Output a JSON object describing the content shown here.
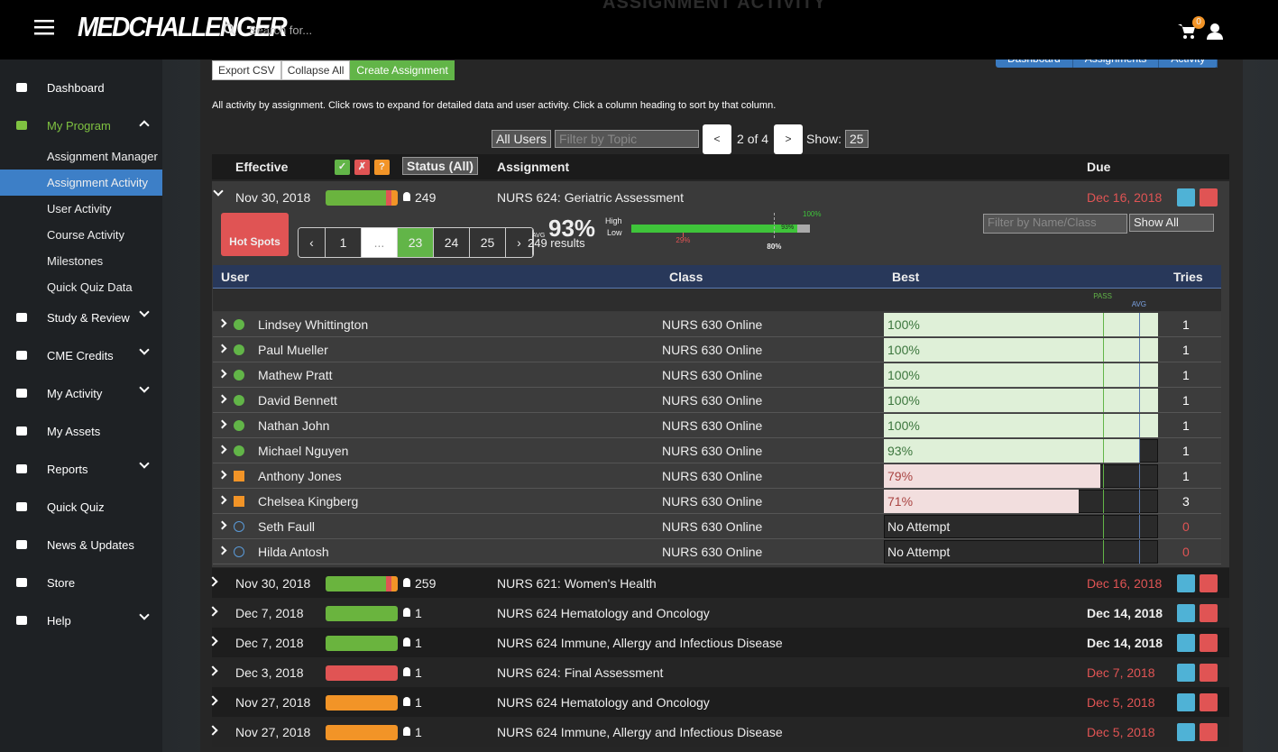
{
  "header": {
    "logo": "MEDCHALLENGER",
    "search_placeholder": "Search for...",
    "cart_count": "0",
    "page_title": "ASSIGNMENT ACTIVITY"
  },
  "sidebar": {
    "items": [
      {
        "label": "Dashboard"
      },
      {
        "label": "My Program",
        "open": true,
        "children": [
          "Assignment Manager",
          "Assignment Activity",
          "User Activity",
          "Course Activity",
          "Milestones",
          "Quick Quiz Data"
        ],
        "active_child": 1
      },
      {
        "label": "Study & Review",
        "caret": true
      },
      {
        "label": "CME Credits",
        "caret": true
      },
      {
        "label": "My Activity",
        "caret": true
      },
      {
        "label": "My Assets"
      },
      {
        "label": "Reports",
        "caret": true
      },
      {
        "label": "Quick Quiz"
      },
      {
        "label": "News & Updates"
      },
      {
        "label": "Store"
      },
      {
        "label": "Help",
        "caret": true
      }
    ]
  },
  "toolbar": [
    "Export CSV",
    "Collapse All",
    "Create Assignment"
  ],
  "nav": [
    "Dashboard",
    "Assignments",
    "Activity"
  ],
  "description": "All activity by assignment. Click rows to expand for detailed data and user activity. Click a column heading to sort by that column.",
  "filters": {
    "users": "All Users",
    "topic_placeholder": "Filter by Topic",
    "prev": "<",
    "page": "2 of 4",
    "next": ">",
    "show_label": "Show:",
    "show_value": "25"
  },
  "columns": {
    "effective": "Effective",
    "status_icons": [
      "✓",
      "✗",
      "?"
    ],
    "status": "Status (All)",
    "assignment": "Assignment",
    "due": "Due"
  },
  "expanded": {
    "effective": "Nov 30, 2018",
    "count": "249",
    "name": "NURS 624: Geriatric Assessment",
    "due": "Dec 16, 2018",
    "due_late": true,
    "hot_spots": "Hot Spots",
    "pages": [
      "‹",
      "1",
      "...",
      "23",
      "24",
      "25",
      "›"
    ],
    "active_page": 3,
    "avg_label": "AVG",
    "avg": {
      "value": 93,
      "label": "93%"
    },
    "results": "249 results",
    "high": "High",
    "low": "Low",
    "max": {
      "value": 100,
      "label": "100%"
    },
    "min": {
      "value": 29,
      "label": "29%"
    },
    "pass": {
      "value": 80,
      "label": "80%"
    },
    "name_filter_placeholder": "Filter by Name/Class",
    "show": "Show All",
    "user_columns": [
      "User",
      "Class",
      "Best",
      "Tries"
    ],
    "pass_label": "PASS",
    "users": [
      {
        "name": "Lindsey Whittington",
        "class": "NURS 630 Online",
        "status": "pass",
        "best": {
          "value": 100,
          "label": "100%"
        },
        "tries": 1
      },
      {
        "name": "Paul Mueller",
        "class": "NURS 630 Online",
        "status": "pass",
        "best": {
          "value": 100,
          "label": "100%"
        },
        "tries": 1
      },
      {
        "name": "Mathew Pratt",
        "class": "NURS 630 Online",
        "status": "pass",
        "best": {
          "value": 100,
          "label": "100%"
        },
        "tries": 1
      },
      {
        "name": "David Bennett",
        "class": "NURS 630 Online",
        "status": "pass",
        "best": {
          "value": 100,
          "label": "100%"
        },
        "tries": 1
      },
      {
        "name": "Nathan John",
        "class": "NURS 630 Online",
        "status": "pass",
        "best": {
          "value": 100,
          "label": "100%"
        },
        "tries": 1
      },
      {
        "name": "Michael Nguyen",
        "class": "NURS 630 Online",
        "status": "pass",
        "best": {
          "value": 93,
          "label": "93%"
        },
        "tries": 1
      },
      {
        "name": "Anthony Jones",
        "class": "NURS 630 Online",
        "status": "warn",
        "best": {
          "value": 79,
          "label": "79%"
        },
        "tries": 1
      },
      {
        "name": "Chelsea Kingberg",
        "class": "NURS 630 Online",
        "status": "warn",
        "best": {
          "value": 71,
          "label": "71%"
        },
        "tries": 3
      },
      {
        "name": "Seth Faull",
        "class": "NURS 630 Online",
        "status": "pending",
        "best": "No Attempt",
        "tries": 0
      },
      {
        "name": "Hilda Antosh",
        "class": "NURS 630 Online",
        "status": "pending",
        "best": "No Attempt",
        "tries": 0
      }
    ]
  },
  "assignments": [
    {
      "effective": "Nov 30, 2018",
      "color": "#6ab43e",
      "mixed": true,
      "count": "259",
      "name": "NURS 621: Women's Health",
      "due": "Dec 16, 2018",
      "due_late": true
    },
    {
      "effective": "Dec 7, 2018",
      "color": "#6ab43e",
      "count": "1",
      "name": "NURS 624 Hematology and Oncology",
      "due": "Dec 14, 2018",
      "due_late": false
    },
    {
      "effective": "Dec 7, 2018",
      "color": "#6ab43e",
      "count": "1",
      "name": "NURS 624 Immune, Allergy and Infectious Disease",
      "due": "Dec 14, 2018",
      "due_late": false
    },
    {
      "effective": "Dec 3, 2018",
      "color": "#e05454",
      "count": "1",
      "name": "NURS 624: Final Assessment",
      "due": "Dec 7, 2018",
      "due_late": true
    },
    {
      "effective": "Nov 27, 2018",
      "color": "#f29427",
      "count": "1",
      "name": "NURS 624 Hematology and Oncology",
      "due": "Dec 5, 2018",
      "due_late": true
    },
    {
      "effective": "Nov 27, 2018",
      "color": "#f29427",
      "count": "1",
      "name": "NURS 624 Immune, Allergy and Infectious Disease",
      "due": "Dec 5, 2018",
      "due_late": true
    }
  ]
}
